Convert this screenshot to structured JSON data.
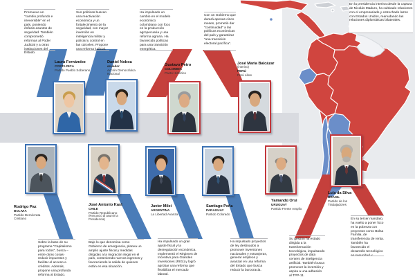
{
  "interim_note": {
    "text": "En la presidencia interina desde la captura de Nicolás Maduro, ha cultivado relaciones con el empresariado y estrechado lazos con Estados Unidos, reanudando las relaciones diplomáticas bilaterales."
  },
  "map": {
    "left_bloc_color": "#d0453f",
    "right_bloc_color": "#6b8ec9",
    "no_data_color": "#f2f3f6",
    "ocean_color": "#e9ebee"
  },
  "leaders": [
    {
      "name": "Laura Fernández",
      "country": "COSTA RICA",
      "party": "Partido Pueblo Soberano",
      "alignment": "blue",
      "description": "Promueve un “cambio profundo e irreversible” en el país, poniendo énfasis asuntos de seguridad. También comprometió reformas al Poder Judicial y a otras instituciones del Estado."
    },
    {
      "name": "Daniel Noboa",
      "country": "ecuador",
      "party": "Acción Democrática Nacional",
      "alignment": "blue",
      "description": "Sus políticas buscan una reactivación económica y un fortalecimiento de la seguridad, con mayor inversión en inteligencia militar y policial y control en las cárceles. Propone una reforma judicial."
    },
    {
      "name": "Gustavo Petro",
      "country": "COLOMBIA",
      "party": "Pacto Histórico",
      "alignment": "red",
      "description": "Ha impulsado un cambio en el modelo económico colombiano con foco en la producción agropecuaria y una reforma agraria. Ha favorecido políticas para una transición energética."
    },
    {
      "name": "José María Balcázar",
      "note": "(interino)",
      "country": "PERÚ",
      "party": "Perú Libre",
      "alignment": "red",
      "description": "Con un Gobierno que durará apenas cinco meses, prometió dar “continuidad” a las políticas económicas del país y garantizar “una transición electoral pacífica”."
    },
    {
      "name": "Rodrigo Paz",
      "country": "BOLIVIA",
      "party": "Partido Demócrata Cristiano",
      "alignment": "blue",
      "description": "Sobre la base de su programa “Capitalismo para todos”, busca –entre otras cosas- reducir impuestos y facilitar el acceso a créditos. Además, propone una profunda reforma al Estado."
    },
    {
      "name": "José Antonio Kast",
      "country": "CHILE",
      "party": "Partido Republicano",
      "note": "(Renunció al asumir la Presidencia)",
      "alignment": "blue",
      "description": "Bajo lo que denomina como Gobierno de emergencia, planea un amplio ajuste fiscal y medidas dirigidas a la migración ilegal en el país, conteniendo nuevos ingresos y favoreciendo la salida de quienes están en esa situación."
    },
    {
      "name": "Javier Milei",
      "country": "ARGENTINA",
      "party": "La Libertad Avanza",
      "alignment": "blue",
      "description": "Ha impulsado un gran ajuste fiscal y la desregulación económica. Implementó el Régimen de Incentivo para Grandes Inversiones (RIGI) y logró aprobar una reforma que flexibiliza el mercado laboral."
    },
    {
      "name": "Santiago Peña",
      "country": "PARAGUAY",
      "party": "Partido Colorado",
      "alignment": "blue",
      "description": "Ha impulsado proyectos de ley destinados a promover inversiones nacionales y extranjeras, generar empleos y avanzar en una reforma del Estado que busca reducir la burocracia."
    },
    {
      "name": "Yamandú Orsi",
      "country": "URUGUAY",
      "party": "Partido Frente Amplio",
      "alignment": "red",
      "description": "Su gestión ha estado dirigida a la transformación tecnológica, impulsando proyectos de data centers de inteligencia artificial. También busca promover la inversión y aspira a una adhesión al TPP-11."
    },
    {
      "name": "Lula da Silva",
      "country": "BRASIL",
      "party": "Partido de los Trabajadores",
      "alignment": "red",
      "description": "En su tercer mandato, ha vuelto a poner foco en la pobreza con proyectos como Bolsa Familia, de transferencia de renta. También ha favorecido el desarrollo tecnológico en seguridad y agricultura. Planea repostularse."
    }
  ]
}
